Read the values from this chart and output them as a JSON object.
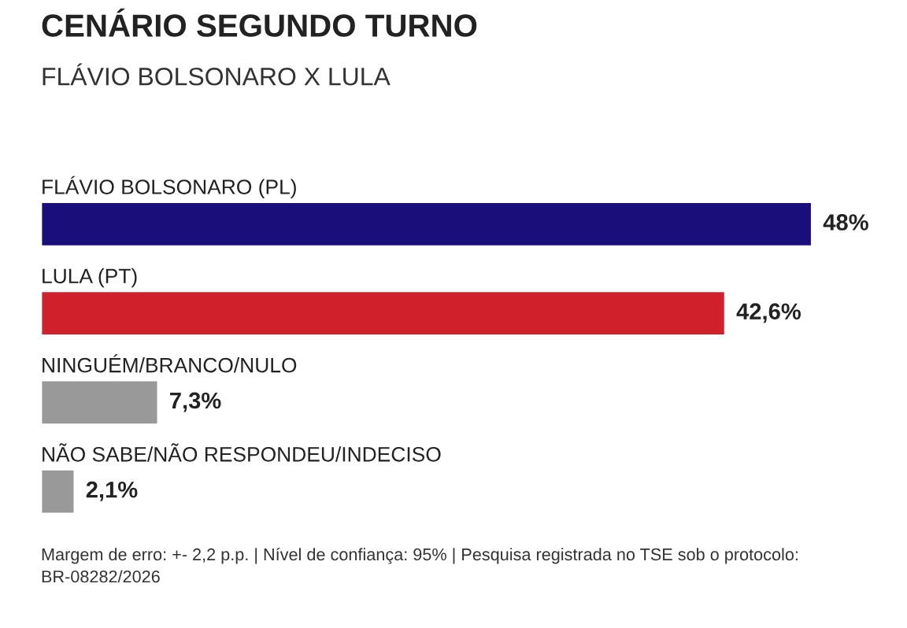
{
  "chart_data": {
    "type": "bar",
    "orientation": "horizontal",
    "title": "CENÁRIO SEGUNDO TURNO",
    "subtitle": "FLÁVIO BOLSONARO X LULA",
    "categories": [
      "FLÁVIO BOLSONARO (PL)",
      "LULA (PT)",
      "NINGUÉM/BRANCO/NULO",
      "NÃO SABE/NÃO RESPONDEU/INDECISO"
    ],
    "values": [
      48,
      42.6,
      7.3,
      2.1
    ],
    "colors": [
      "#1a0f7a",
      "#d0202c",
      "#999999",
      "#999999"
    ],
    "value_labels": [
      "48%",
      "42,6%",
      "7,3%",
      "2,1%"
    ],
    "annotations": [
      "Margem de erro: +- 2,2 p.p. | Nível de confiança: 95% | Pesquisa registrada no TSE sob o protocolo: BR-08282/2026"
    ]
  }
}
